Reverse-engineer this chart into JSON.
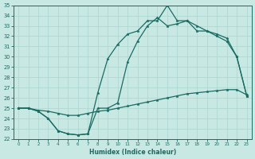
{
  "xlabel": "Humidex (Indice chaleur)",
  "xlim": [
    0,
    23
  ],
  "ylim": [
    22,
    35
  ],
  "yticks": [
    22,
    23,
    24,
    25,
    26,
    27,
    28,
    29,
    30,
    31,
    32,
    33,
    34,
    35
  ],
  "xticks": [
    0,
    1,
    2,
    3,
    4,
    5,
    6,
    7,
    8,
    9,
    10,
    11,
    12,
    13,
    14,
    15,
    16,
    17,
    18,
    19,
    20,
    21,
    22,
    23
  ],
  "bg_color": "#c8e8e4",
  "line_color": "#1a6b62",
  "grid_color": "#b0d8d2",
  "line1_x": [
    0,
    1,
    2,
    3,
    4,
    5,
    6,
    7,
    8,
    9,
    10,
    11,
    12,
    13,
    14,
    15,
    16,
    17,
    18,
    19,
    20,
    21,
    22,
    23
  ],
  "line1_y": [
    25.0,
    25.0,
    24.7,
    24.0,
    22.8,
    22.5,
    22.4,
    22.5,
    26.5,
    29.8,
    31.2,
    32.2,
    32.5,
    33.5,
    33.5,
    35.0,
    33.5,
    33.5,
    33.0,
    32.5,
    32.0,
    31.5,
    30.0,
    26.2
  ],
  "line2_x": [
    0,
    1,
    2,
    3,
    4,
    5,
    6,
    7,
    8,
    9,
    10,
    11,
    12,
    13,
    14,
    15,
    16,
    17,
    18,
    19,
    20,
    21,
    22,
    23
  ],
  "line2_y": [
    25.0,
    25.0,
    24.7,
    24.0,
    22.8,
    22.5,
    22.4,
    22.5,
    25.0,
    25.0,
    25.5,
    29.5,
    31.5,
    33.0,
    33.8,
    33.0,
    33.2,
    33.5,
    32.5,
    32.5,
    32.2,
    31.8,
    30.0,
    26.2
  ],
  "line3_x": [
    0,
    1,
    2,
    3,
    4,
    5,
    6,
    7,
    8,
    9,
    10,
    11,
    12,
    13,
    14,
    15,
    16,
    17,
    18,
    19,
    20,
    21,
    22,
    23
  ],
  "line3_y": [
    25.0,
    25.0,
    24.8,
    24.7,
    24.5,
    24.3,
    24.3,
    24.5,
    24.7,
    24.8,
    25.0,
    25.2,
    25.4,
    25.6,
    25.8,
    26.0,
    26.2,
    26.4,
    26.5,
    26.6,
    26.7,
    26.8,
    26.8,
    26.3
  ]
}
